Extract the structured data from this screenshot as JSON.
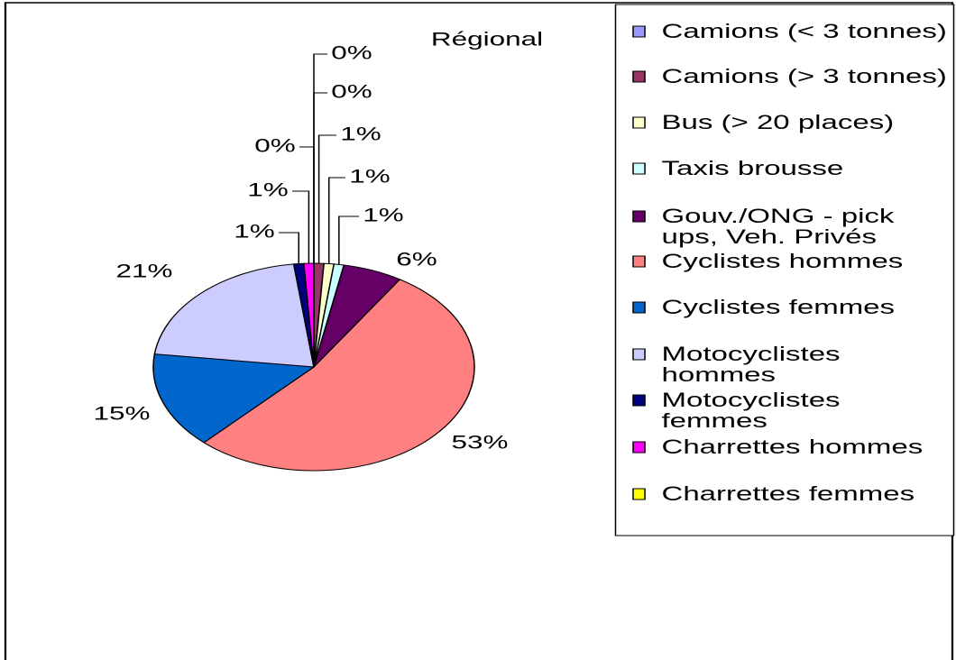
{
  "chart_data": {
    "type": "pie",
    "title": "Régional",
    "categories": [
      null,
      "Camions (< 3 tonnes)",
      "Camions (> 3 tonnes)",
      "Bus (> 20 places)",
      "Taxis brousse",
      "Gouv./ONG - pick ups, Veh. Privés",
      "Cyclistes hommes",
      "Cyclistes femmes",
      "Motocyclistes hommes",
      "Motocyclistes femmes",
      "Charrettes hommes",
      "Charrettes femmes"
    ],
    "values": [
      0,
      0,
      1,
      1,
      1,
      6,
      53,
      15,
      21,
      1,
      1,
      0
    ],
    "value_labels": [
      "0%",
      "0%",
      "1%",
      "1%",
      "1%",
      "6%",
      "53%",
      "15%",
      "21%",
      "1%",
      "1%",
      "0%"
    ],
    "colors": [
      "#9999ff",
      "#9999ff",
      "#993366",
      "#ffffcc",
      "#ccffff",
      "#660066",
      "#ff8080",
      "#0066cc",
      "#ccccff",
      "#000080",
      "#ff00ff",
      "#ffff00"
    ],
    "legend": "right"
  }
}
